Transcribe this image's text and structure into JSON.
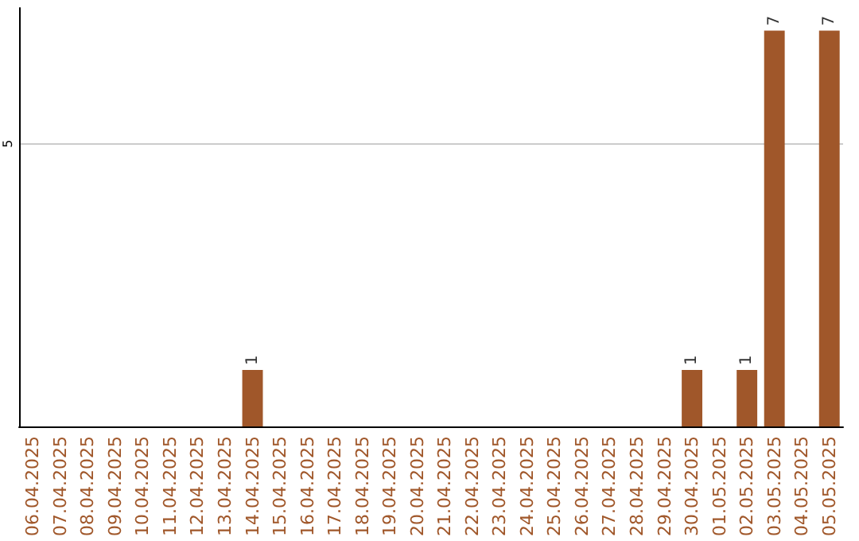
{
  "chart_data": {
    "type": "bar",
    "categories": [
      "06.04.2025",
      "07.04.2025",
      "08.04.2025",
      "09.04.2025",
      "10.04.2025",
      "11.04.2025",
      "12.04.2025",
      "13.04.2025",
      "14.04.2025",
      "15.04.2025",
      "16.04.2025",
      "17.04.2025",
      "18.04.2025",
      "19.04.2025",
      "20.04.2025",
      "21.04.2025",
      "22.04.2025",
      "23.04.2025",
      "24.04.2025",
      "25.04.2025",
      "26.04.2025",
      "27.04.2025",
      "28.04.2025",
      "29.04.2025",
      "30.04.2025",
      "01.05.2025",
      "02.05.2025",
      "03.05.2025",
      "04.05.2025",
      "05.05.2025"
    ],
    "values": [
      0,
      0,
      0,
      0,
      0,
      0,
      0,
      0,
      1,
      0,
      0,
      0,
      0,
      0,
      0,
      0,
      0,
      0,
      0,
      0,
      0,
      0,
      0,
      0,
      1,
      0,
      1,
      7,
      0,
      7
    ],
    "value_labels": [
      null,
      null,
      null,
      null,
      null,
      null,
      null,
      null,
      "1",
      null,
      null,
      null,
      null,
      null,
      null,
      null,
      null,
      null,
      null,
      null,
      null,
      null,
      null,
      null,
      "1",
      null,
      "1",
      "7",
      null,
      "7"
    ],
    "color": "#a0572a",
    "ylim": [
      0,
      7.4
    ],
    "yticks": [
      5
    ],
    "grid": "y"
  }
}
